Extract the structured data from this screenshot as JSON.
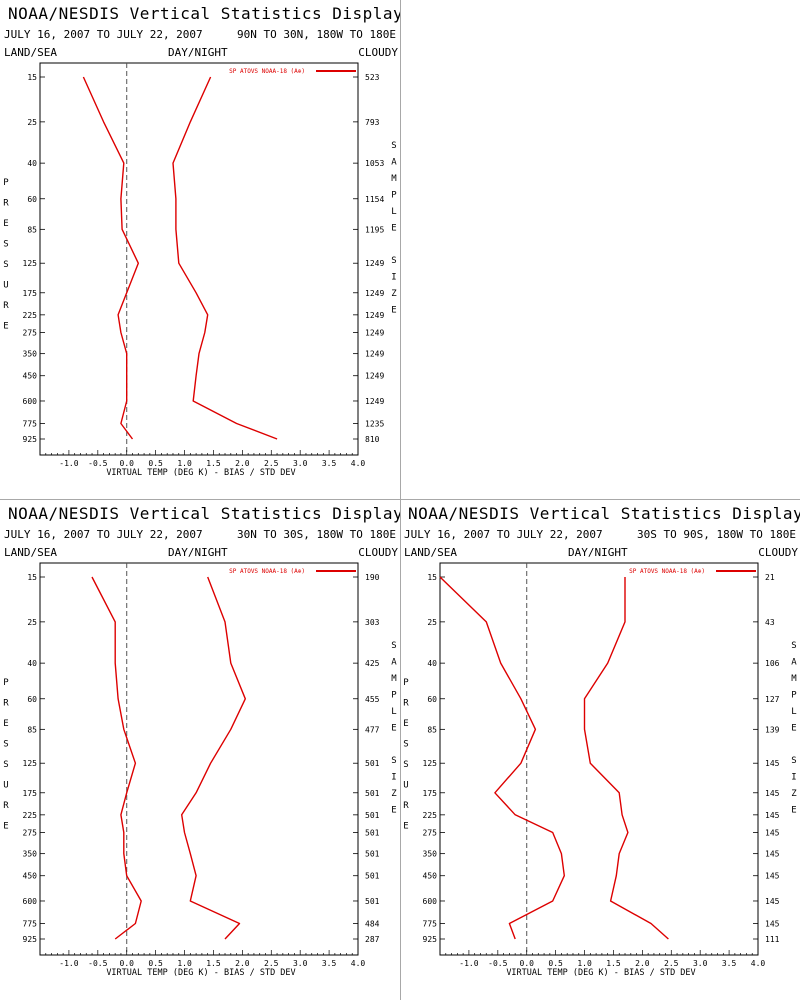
{
  "labels": {
    "land_sea": "LAND/SEA",
    "day_night": "DAY/NIGHT",
    "cloudy": "CLOUDY",
    "y_axis": "PRESSURE",
    "right_axis": "SAMPLE SIZE",
    "x_axis": "VIRTUAL TEMP (DEG K) - BIAS / STD DEV"
  },
  "chart_data": [
    {
      "type": "line",
      "title": "NOAA/NESDIS Vertical Statistics Display",
      "date_range": "JULY 16, 2007 TO JULY 22, 2007",
      "region": "90N TO 30N, 180W TO 180E",
      "legend": "SP ATOVS NOAA-18 (A⊕)",
      "xlim": [
        -1.5,
        4.0
      ],
      "x_ticks": [
        "-1.0",
        "-0.5",
        "0.0",
        "0.5",
        "1.0",
        "1.5",
        "2.0",
        "2.5",
        "3.0",
        "3.5",
        "4.0"
      ],
      "pressure_levels": [
        15,
        25,
        40,
        60,
        85,
        125,
        175,
        225,
        275,
        350,
        450,
        600,
        775,
        925
      ],
      "sample_size": [
        "523",
        "793",
        "1053",
        "1154",
        "1195",
        "1249",
        "1249",
        "1249",
        "1249",
        "1249",
        "1249",
        "1249",
        "1235",
        "810"
      ],
      "series": [
        {
          "name": "bias",
          "values": [
            -0.75,
            -0.4,
            -0.05,
            -0.1,
            -0.08,
            0.2,
            0.0,
            -0.15,
            -0.1,
            0.0,
            0.0,
            0.0,
            -0.1,
            0.1
          ]
        },
        {
          "name": "std_dev",
          "values": [
            1.45,
            1.1,
            0.8,
            0.85,
            0.85,
            0.9,
            1.2,
            1.4,
            1.35,
            1.25,
            1.2,
            1.15,
            1.9,
            2.6
          ]
        }
      ]
    },
    {
      "type": "line",
      "title": "NOAA/NESDIS Vertical Statistics Display",
      "date_range": "JULY 16, 2007 TO JULY 22, 2007",
      "region": "30N TO 30S, 180W TO 180E",
      "legend": "SP ATOVS NOAA-18 (A⊕)",
      "xlim": [
        -1.5,
        4.0
      ],
      "x_ticks": [
        "-1.0",
        "-0.5",
        "0.0",
        "0.5",
        "1.0",
        "1.5",
        "2.0",
        "2.5",
        "3.0",
        "3.5",
        "4.0"
      ],
      "pressure_levels": [
        15,
        25,
        40,
        60,
        85,
        125,
        175,
        225,
        275,
        350,
        450,
        600,
        775,
        925
      ],
      "sample_size": [
        "190",
        "303",
        "425",
        "455",
        "477",
        "501",
        "501",
        "501",
        "501",
        "501",
        "501",
        "501",
        "484",
        "287"
      ],
      "series": [
        {
          "name": "bias",
          "values": [
            -0.6,
            -0.2,
            -0.2,
            -0.15,
            -0.05,
            0.15,
            0.0,
            -0.1,
            -0.05,
            -0.05,
            0.0,
            0.25,
            0.15,
            -0.2
          ]
        },
        {
          "name": "std_dev",
          "values": [
            1.4,
            1.7,
            1.8,
            2.05,
            1.8,
            1.45,
            1.2,
            0.95,
            1.0,
            1.1,
            1.2,
            1.1,
            1.95,
            1.7
          ]
        }
      ]
    },
    {
      "type": "line",
      "title": "NOAA/NESDIS Vertical Statistics Display",
      "date_range": "JULY 16, 2007 TO JULY 22, 2007",
      "region": "30S TO 90S, 180W TO 180E",
      "legend": "SP ATOVS NOAA-18 (A⊕)",
      "xlim": [
        -1.5,
        4.0
      ],
      "x_ticks": [
        "-1.0",
        "-0.5",
        "0.0",
        "0.5",
        "1.0",
        "1.5",
        "2.0",
        "2.5",
        "3.0",
        "3.5",
        "4.0"
      ],
      "pressure_levels": [
        15,
        25,
        40,
        60,
        85,
        125,
        175,
        225,
        275,
        350,
        450,
        600,
        775,
        925
      ],
      "sample_size": [
        "21",
        "43",
        "106",
        "127",
        "139",
        "145",
        "145",
        "145",
        "145",
        "145",
        "145",
        "145",
        "145",
        "111"
      ],
      "series": [
        {
          "name": "bias",
          "values": [
            -1.5,
            -0.7,
            -0.45,
            -0.1,
            0.15,
            -0.1,
            -0.55,
            -0.2,
            0.45,
            0.6,
            0.65,
            0.45,
            -0.3,
            -0.2
          ]
        },
        {
          "name": "std_dev",
          "values": [
            1.7,
            1.7,
            1.4,
            1.0,
            1.0,
            1.1,
            1.6,
            1.65,
            1.75,
            1.6,
            1.55,
            1.45,
            2.15,
            2.45
          ]
        }
      ]
    }
  ]
}
